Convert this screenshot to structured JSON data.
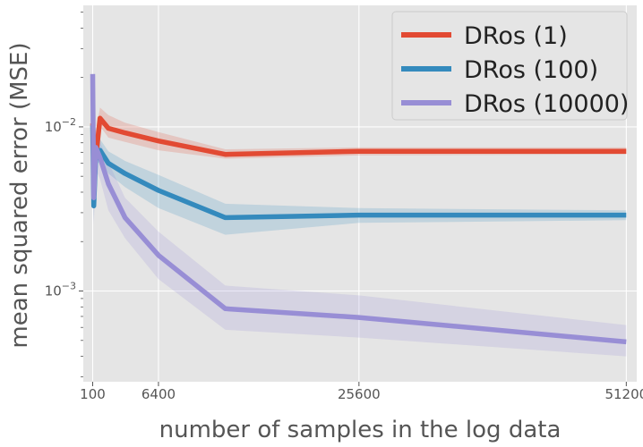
{
  "chart_data": {
    "type": "line",
    "title": "",
    "xlabel": "number of samples in the log data",
    "ylabel": "mean squared error (MSE)",
    "xlim": [
      -800,
      52200
    ],
    "ylim": [
      0.00028,
      0.055
    ],
    "yscale": "log",
    "x_ticks": [
      100,
      6400,
      25600,
      51200
    ],
    "x_tick_labels": [
      "100",
      "6400",
      "25600",
      "51200"
    ],
    "y_ticks": [
      0.001,
      0.01
    ],
    "y_tick_labels": [
      "10−3",
      "10−2"
    ],
    "grid": true,
    "legend_position": "top-right",
    "series": [
      {
        "name": "DRos (1)",
        "color": "#e24a33",
        "x": [
          100,
          200,
          400,
          800,
          1600,
          3200,
          6400,
          12800,
          25600,
          51200
        ],
        "y": [
          0.0105,
          0.0075,
          0.0065,
          0.0113,
          0.0098,
          0.0092,
          0.0082,
          0.0068,
          0.0071,
          0.0071
        ],
        "lower": [
          0.0096,
          0.0062,
          0.0052,
          0.0101,
          0.0086,
          0.0081,
          0.0072,
          0.0064,
          0.0067,
          0.0068
        ],
        "upper": [
          0.0117,
          0.0102,
          0.0095,
          0.0131,
          0.0118,
          0.0106,
          0.0093,
          0.0073,
          0.0075,
          0.0075
        ]
      },
      {
        "name": "DRos (100)",
        "color": "#348abd",
        "x": [
          100,
          200,
          400,
          800,
          1600,
          3200,
          6400,
          12800,
          25600,
          51200
        ],
        "y": [
          0.0102,
          0.0033,
          0.0068,
          0.0072,
          0.006,
          0.0052,
          0.0041,
          0.0028,
          0.0029,
          0.0029
        ],
        "lower": [
          0.0088,
          0.0027,
          0.0058,
          0.0062,
          0.0052,
          0.0043,
          0.0032,
          0.0022,
          0.0026,
          0.0027
        ],
        "upper": [
          0.0115,
          0.0052,
          0.0079,
          0.0084,
          0.0071,
          0.0062,
          0.0051,
          0.0034,
          0.0032,
          0.0031
        ]
      },
      {
        "name": "DRos (10000)",
        "color": "#988ed5",
        "x": [
          100,
          200,
          400,
          800,
          1600,
          3200,
          6400,
          12800,
          25600,
          51200
        ],
        "y": [
          0.021,
          0.0037,
          0.0075,
          0.0065,
          0.0045,
          0.0028,
          0.00165,
          0.00078,
          0.00069,
          0.00049
        ],
        "lower": [
          0.0132,
          0.0025,
          0.0055,
          0.0048,
          0.0031,
          0.0021,
          0.00118,
          0.00058,
          0.00052,
          0.0004
        ],
        "upper": [
          0.0239,
          0.0061,
          0.0093,
          0.0081,
          0.0061,
          0.0037,
          0.0023,
          0.00108,
          0.00094,
          0.00062
        ]
      }
    ]
  }
}
